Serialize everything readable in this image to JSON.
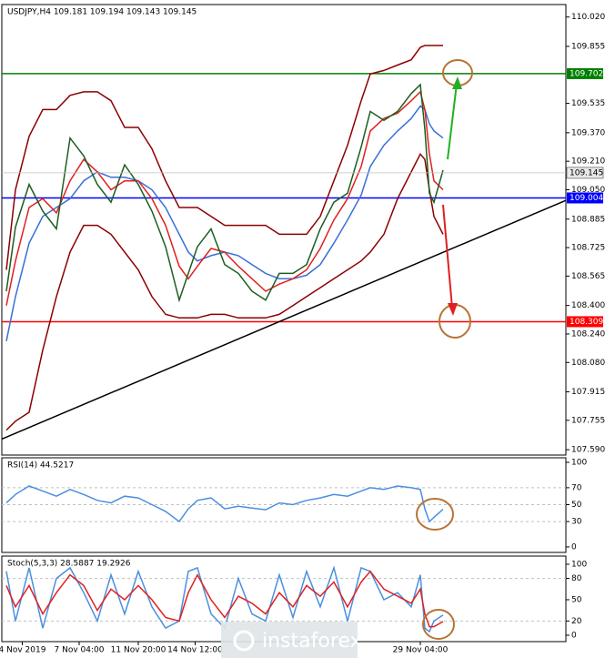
{
  "chart_data": [
    {
      "type": "line",
      "title": "USDJPY,H4  109.181 109.194 109.143 109.145",
      "xlim": [
        0,
        124
      ],
      "ylim": [
        107.56,
        110.09
      ],
      "xticks": [
        {
          "value": 4.5,
          "label": "4 Nov 2019"
        },
        {
          "value": 17,
          "label": "7 Nov 04:00"
        },
        {
          "value": 30,
          "label": "11 Nov 20:00"
        },
        {
          "value": 42.5,
          "label": "14 Nov 12:00"
        },
        {
          "value": 92,
          "label": "29 Nov 04:00"
        }
      ],
      "yticks": [
        {
          "value": 110.02,
          "label": "110.020"
        },
        109.855,
        109.535,
        {
          "value": 109.37,
          "label": "109.370"
        },
        {
          "value": 109.21,
          "label": "109.210"
        },
        {
          "value": 109.05,
          "label": "109.050"
        },
        108.885,
        108.725,
        108.565,
        {
          "value": 108.4,
          "label": "108.400"
        },
        {
          "value": 108.24,
          "label": "108.240"
        },
        {
          "value": 108.08,
          "label": "108.080"
        },
        107.915,
        107.755,
        {
          "value": 107.59,
          "label": "107.590"
        }
      ],
      "x": [
        1,
        3,
        6,
        9,
        12,
        15,
        18,
        21,
        24,
        27,
        30,
        33,
        36,
        39,
        41,
        43,
        46,
        49,
        52,
        55,
        58,
        61,
        64,
        67,
        70,
        73,
        76,
        79,
        81,
        84,
        87,
        90,
        92,
        93,
        94,
        95,
        97
      ],
      "series": [
        {
          "color": "#8b0000",
          "values": [
            108.6,
            109.05,
            109.35,
            109.5,
            109.5,
            109.58,
            109.6,
            109.6,
            109.55,
            109.4,
            109.4,
            109.28,
            109.1,
            108.95,
            108.95,
            108.95,
            108.9,
            108.85,
            108.85,
            108.85,
            108.85,
            108.8,
            108.8,
            108.8,
            108.9,
            109.1,
            109.3,
            109.55,
            109.7,
            109.72,
            109.75,
            109.78,
            109.85,
            109.86,
            109.86,
            109.86,
            109.86
          ]
        },
        {
          "color": "#8b0000",
          "values": [
            107.7,
            107.75,
            107.8,
            108.15,
            108.45,
            108.7,
            108.85,
            108.85,
            108.8,
            108.7,
            108.6,
            108.45,
            108.35,
            108.33,
            108.33,
            108.33,
            108.35,
            108.35,
            108.33,
            108.33,
            108.33,
            108.35,
            108.4,
            108.45,
            108.5,
            108.55,
            108.6,
            108.65,
            108.7,
            108.8,
            109.0,
            109.15,
            109.25,
            109.22,
            109.05,
            108.9,
            108.8
          ]
        },
        {
          "color": "#3a6fd8",
          "values": [
            108.2,
            108.45,
            108.75,
            108.9,
            108.95,
            109.0,
            109.1,
            109.15,
            109.12,
            109.12,
            109.1,
            109.05,
            108.95,
            108.8,
            108.7,
            108.65,
            108.68,
            108.7,
            108.68,
            108.63,
            108.58,
            108.55,
            108.55,
            108.57,
            108.63,
            108.75,
            108.88,
            109.02,
            109.18,
            109.3,
            109.38,
            109.45,
            109.52,
            109.5,
            109.42,
            109.38,
            109.34
          ]
        },
        {
          "color": "#e02020",
          "values": [
            108.4,
            108.65,
            108.95,
            109.0,
            108.92,
            109.1,
            109.22,
            109.15,
            109.05,
            109.1,
            109.1,
            109.0,
            108.85,
            108.62,
            108.55,
            108.62,
            108.72,
            108.7,
            108.62,
            108.55,
            108.48,
            108.52,
            108.55,
            108.6,
            108.72,
            108.88,
            109.0,
            109.18,
            109.38,
            109.45,
            109.48,
            109.55,
            109.6,
            109.5,
            109.25,
            109.1,
            109.05
          ]
        },
        {
          "color": "#1b5e20",
          "values": [
            108.48,
            108.84,
            109.08,
            108.93,
            108.83,
            109.34,
            109.24,
            109.08,
            108.98,
            109.19,
            109.08,
            108.93,
            108.73,
            108.43,
            108.58,
            108.73,
            108.83,
            108.63,
            108.58,
            108.48,
            108.43,
            108.58,
            108.58,
            108.63,
            108.83,
            108.98,
            109.03,
            109.29,
            109.49,
            109.44,
            109.49,
            109.59,
            109.64,
            109.39,
            109.03,
            108.98,
            109.16
          ]
        }
      ],
      "trendline": {
        "color": "#000000",
        "x": [
          0,
          124
        ],
        "values": [
          107.65,
          108.99
        ]
      },
      "levels": [
        {
          "value": 109.702,
          "color": "#008000"
        },
        {
          "value": 109.004,
          "color": "#0000ff"
        },
        {
          "value": 108.309,
          "color": "#ff0000"
        }
      ],
      "current_price": 109.145,
      "watermark": "instaforex"
    },
    {
      "type": "line",
      "title": "RSI(14) 44.5217",
      "xlim": [
        0,
        124
      ],
      "ylim": [
        -6.5,
        105.4
      ],
      "yticks": [
        100,
        70,
        50,
        30,
        0
      ],
      "levels": [
        {
          "value": 70,
          "color": "#c0c0c0"
        },
        {
          "value": 50,
          "color": "#c0c0c0"
        },
        {
          "value": 30,
          "color": "#c0c0c0"
        }
      ],
      "x": [
        1,
        3,
        6,
        9,
        12,
        15,
        18,
        21,
        24,
        27,
        30,
        33,
        36,
        39,
        41,
        43,
        46,
        49,
        52,
        55,
        58,
        61,
        64,
        67,
        70,
        73,
        76,
        79,
        81,
        84,
        87,
        90,
        92,
        93,
        94,
        95,
        97
      ],
      "series": [
        {
          "color": "#4a8fe0",
          "values": [
            52,
            62,
            72,
            66,
            60,
            68,
            62,
            55,
            52,
            60,
            58,
            50,
            42,
            30,
            45,
            55,
            58,
            45,
            48,
            46,
            44,
            52,
            50,
            55,
            58,
            62,
            60,
            66,
            70,
            68,
            72,
            70,
            68,
            45,
            30,
            35,
            44.5
          ]
        }
      ]
    },
    {
      "type": "line",
      "title": "Stoch(5,3,3) 28.5887 19.2926",
      "xlim": [
        0,
        124
      ],
      "ylim": [
        -9,
        111.5
      ],
      "yticks": [
        100,
        80,
        50,
        20,
        0
      ],
      "levels": [
        {
          "value": 80,
          "color": "#c0c0c0"
        },
        {
          "value": 20,
          "color": "#c0c0c0"
        }
      ],
      "x": [
        1,
        3,
        6,
        9,
        12,
        15,
        18,
        21,
        24,
        27,
        30,
        33,
        36,
        39,
        41,
        43,
        46,
        49,
        52,
        55,
        58,
        61,
        64,
        67,
        70,
        73,
        76,
        79,
        81,
        84,
        87,
        90,
        92,
        93,
        94,
        95,
        97
      ],
      "series": [
        {
          "color": "#4a8fe0",
          "values": [
            90,
            20,
            95,
            10,
            80,
            95,
            60,
            20,
            85,
            30,
            90,
            40,
            10,
            20,
            90,
            95,
            30,
            10,
            80,
            30,
            20,
            85,
            25,
            90,
            40,
            95,
            20,
            95,
            90,
            50,
            60,
            40,
            85,
            10,
            5,
            20,
            28.6
          ]
        },
        {
          "color": "#e02020",
          "values": [
            70,
            40,
            70,
            30,
            60,
            85,
            70,
            35,
            65,
            50,
            70,
            50,
            25,
            20,
            60,
            85,
            50,
            25,
            55,
            45,
            30,
            60,
            40,
            70,
            55,
            75,
            40,
            75,
            90,
            65,
            55,
            45,
            65,
            30,
            12,
            12,
            19.3
          ]
        }
      ]
    }
  ]
}
